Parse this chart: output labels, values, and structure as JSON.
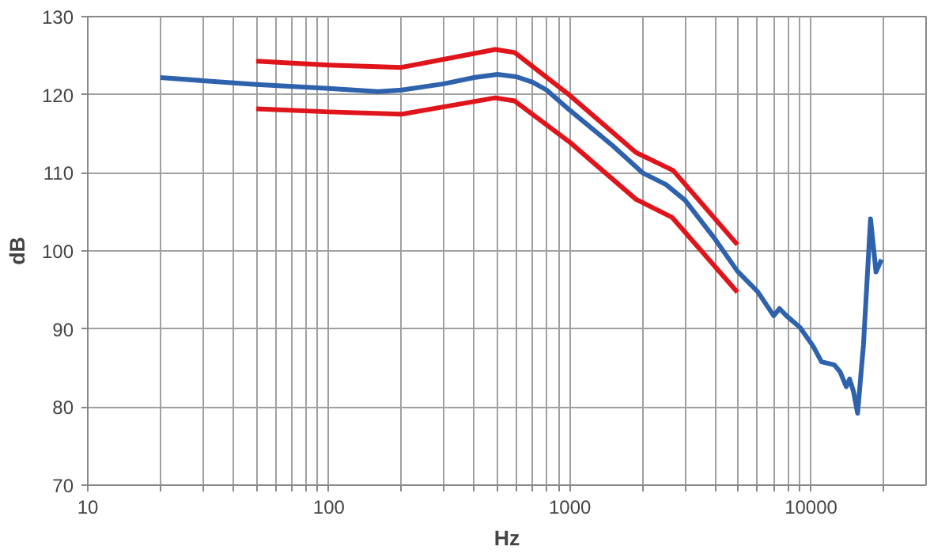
{
  "chart_data": {
    "type": "line",
    "xlabel": "Hz",
    "ylabel": "dB",
    "log": "x",
    "xlim": [
      10,
      30000
    ],
    "ylim": [
      70,
      130
    ],
    "xticks": [
      10,
      {
        "value": 20,
        "label": null
      },
      {
        "value": 30,
        "label": null
      },
      {
        "value": 40,
        "label": null
      },
      {
        "value": 50,
        "label": null
      },
      {
        "value": 60,
        "label": null
      },
      {
        "value": 70,
        "label": null
      },
      {
        "value": 80,
        "label": null
      },
      {
        "value": 90,
        "label": null
      },
      100,
      {
        "value": 200,
        "label": null
      },
      {
        "value": 300,
        "label": null
      },
      {
        "value": 400,
        "label": null
      },
      {
        "value": 500,
        "label": null
      },
      {
        "value": 600,
        "label": null
      },
      {
        "value": 700,
        "label": null
      },
      {
        "value": 800,
        "label": null
      },
      {
        "value": 900,
        "label": null
      },
      1000,
      {
        "value": 2000,
        "label": null
      },
      {
        "value": 3000,
        "label": null
      },
      {
        "value": 4000,
        "label": null
      },
      {
        "value": 5000,
        "label": null
      },
      {
        "value": 6000,
        "label": null
      },
      {
        "value": 7000,
        "label": null
      },
      {
        "value": 8000,
        "label": null
      },
      {
        "value": 9000,
        "label": null
      },
      10000,
      {
        "value": 20000,
        "label": null
      }
    ],
    "yticks": [
      70,
      80,
      90,
      100,
      110,
      120,
      130
    ],
    "grid": true,
    "marker": "none",
    "line_style": "solid",
    "series": [
      {
        "color": "#e0141b",
        "x": [
          50,
          100,
          200,
          490,
          590,
          1000,
          1880,
          2680,
          4950
        ],
        "values": [
          124.3,
          123.8,
          123.5,
          125.8,
          125.4,
          119.9,
          112.6,
          110.3,
          100.8
        ]
      },
      {
        "color": "#e0141b",
        "x": [
          50,
          100,
          200,
          490,
          590,
          1000,
          1880,
          2650,
          4950
        ],
        "values": [
          118.2,
          117.8,
          117.5,
          119.6,
          119.2,
          113.9,
          106.6,
          104.3,
          94.7
        ]
      },
      {
        "color": "#2e62ad",
        "x": [
          20,
          30,
          50,
          100,
          160,
          200,
          300,
          400,
          500,
          600,
          700,
          800,
          1000,
          1500,
          2000,
          2500,
          3000,
          4000,
          4950,
          6000,
          7000,
          7400,
          7900,
          9000,
          10200,
          11050,
          12500,
          13200,
          14000,
          14450,
          15000,
          15600,
          16500,
          17650,
          18600,
          19600
        ],
        "values": [
          122.2,
          121.8,
          121.3,
          120.8,
          120.4,
          120.6,
          121.4,
          122.2,
          122.6,
          122.3,
          121.6,
          120.6,
          118,
          113.5,
          110,
          108.5,
          106.5,
          101.5,
          97.4,
          94.8,
          91.7,
          92.6,
          91.7,
          90.2,
          87.8,
          85.8,
          85.4,
          84.5,
          82.6,
          83.6,
          82,
          79.2,
          88,
          104.1,
          97.3,
          98.9
        ]
      }
    ]
  }
}
